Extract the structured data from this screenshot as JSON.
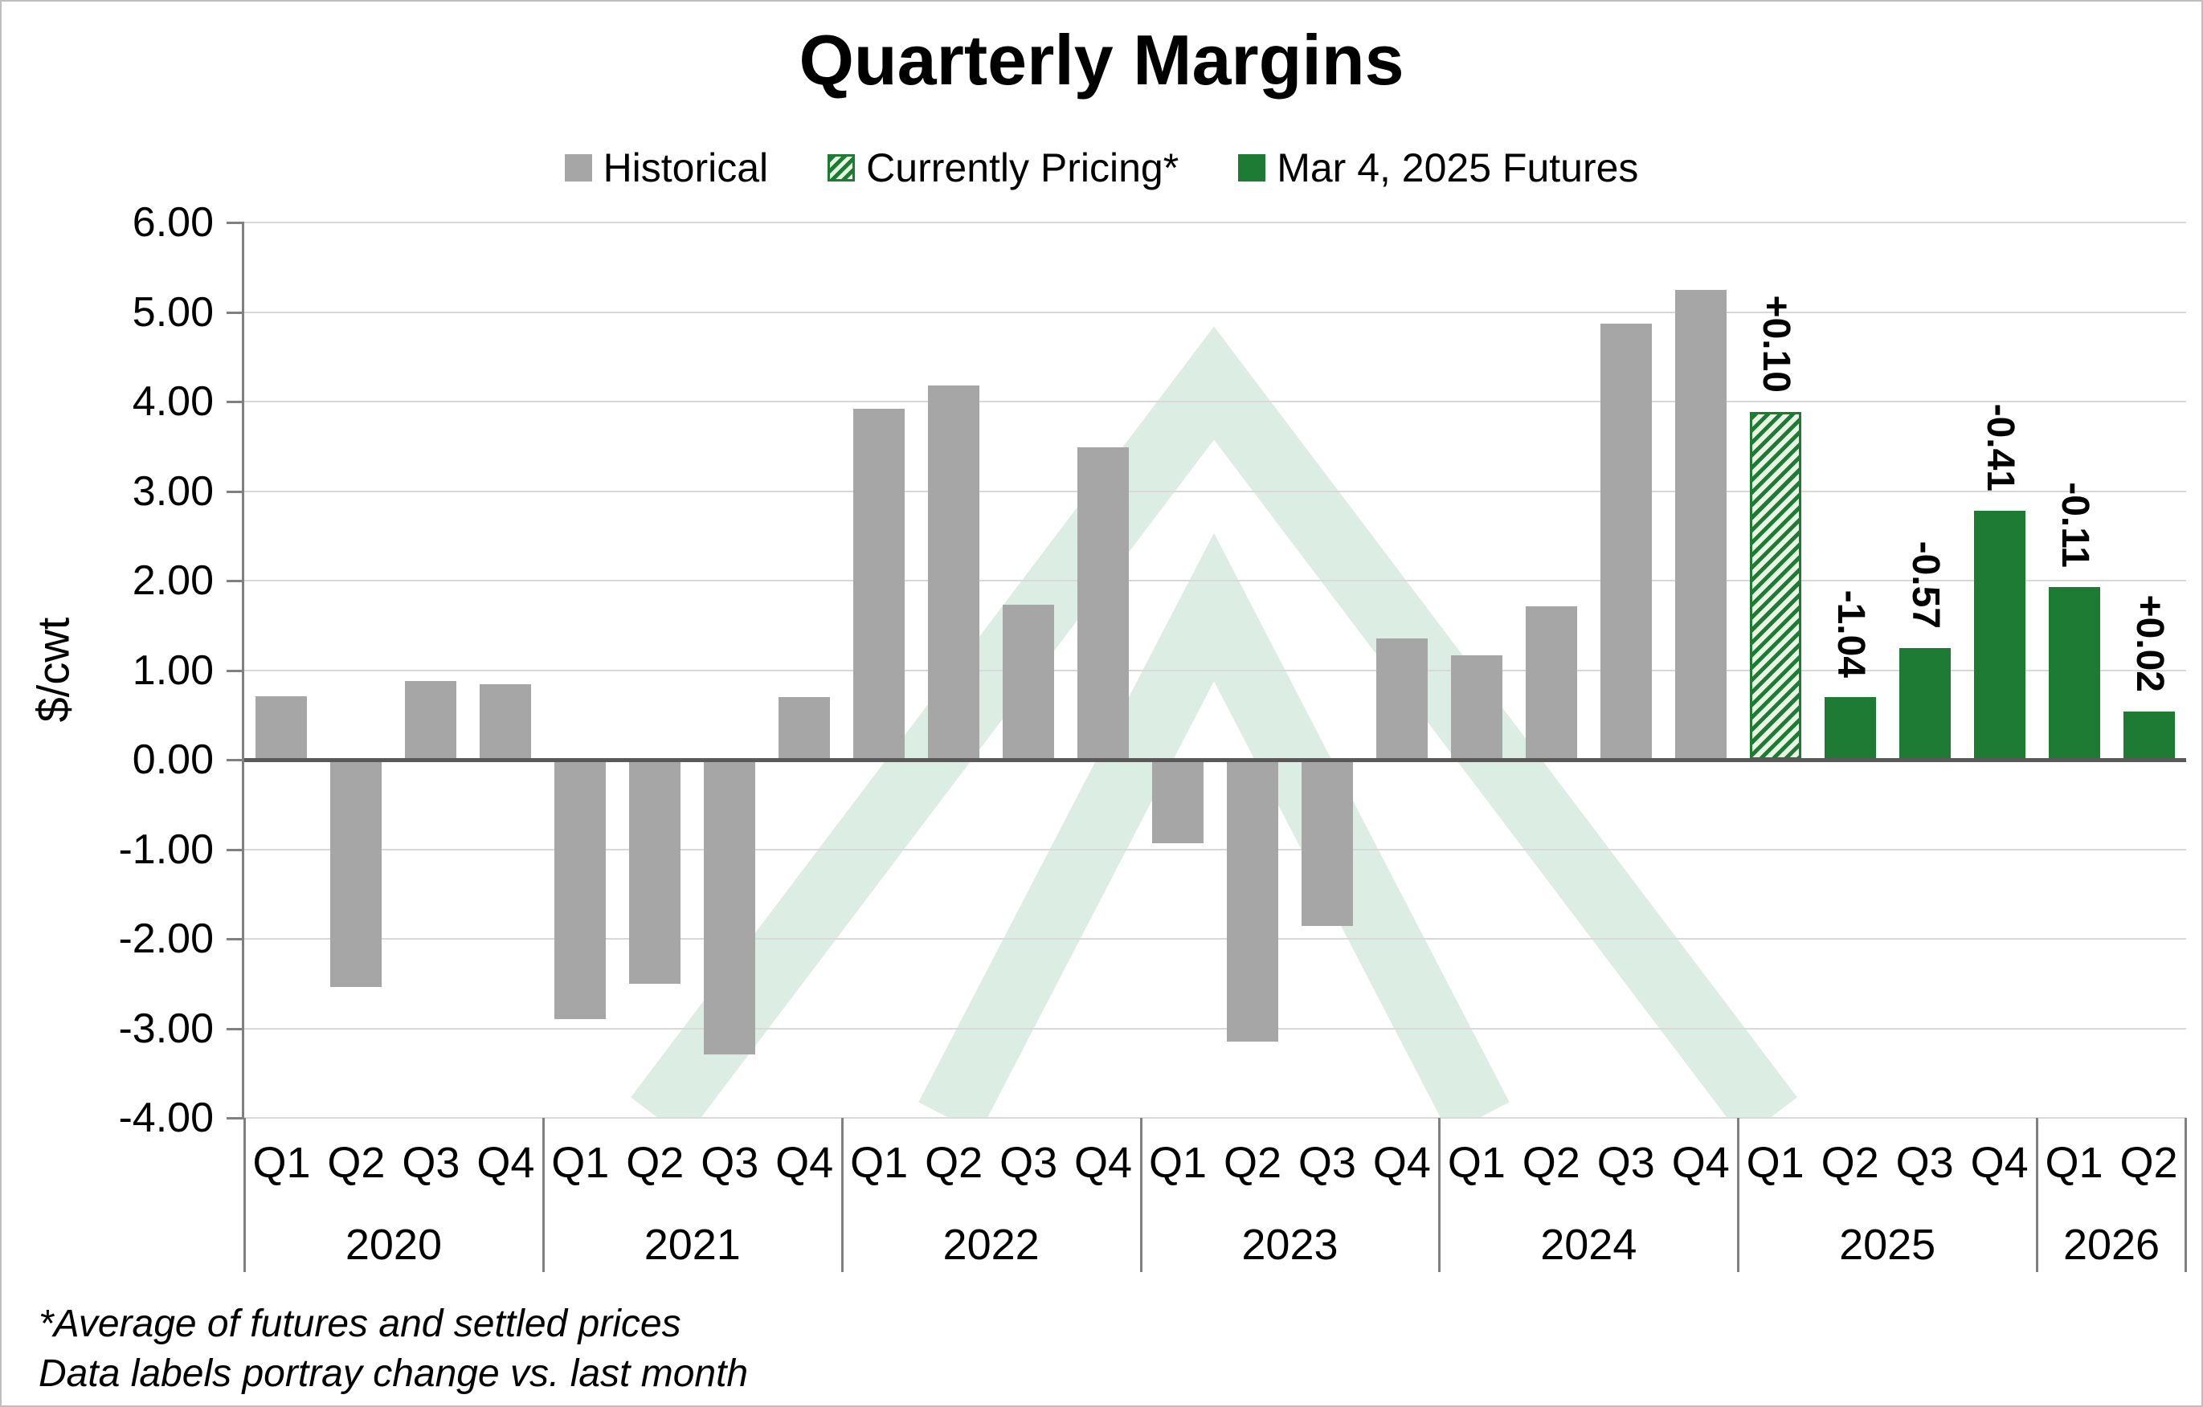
{
  "title": "Quarterly Margins",
  "legend": {
    "items": [
      {
        "key": "historical",
        "label": "Historical",
        "swatch": "solid-gray"
      },
      {
        "key": "pricing",
        "label": "Currently Pricing*",
        "swatch": "hatched-green"
      },
      {
        "key": "futures",
        "label": "Mar 4, 2025 Futures",
        "swatch": "solid-green"
      }
    ]
  },
  "y_axis": {
    "title": "$/cwt",
    "max": 6,
    "min": -4,
    "step": 1,
    "tick_labels": [
      "6.00",
      "5.00",
      "4.00",
      "3.00",
      "2.00",
      "1.00",
      "0.00",
      "-1.00",
      "-2.00",
      "-3.00",
      "-4.00"
    ]
  },
  "footnotes": [
    "*Average of futures and settled prices",
    "Data labels portray change vs. last month"
  ],
  "colors": {
    "historical": "#a6a6a6",
    "futures_green": "#1e7b33",
    "hatch_background": "#e9f4e4",
    "gridline": "#d9d9d9",
    "zero_line": "#595959",
    "axis": "#808080",
    "watermark": "#dcede3",
    "chart_border": "#bfbfbf",
    "text": "#000000"
  },
  "chart_data": {
    "type": "bar",
    "title": "Quarterly Margins",
    "ylabel": "$/cwt",
    "ylim": [
      -4,
      6
    ],
    "ytick_step": 1,
    "grid": true,
    "legend_position": "top",
    "x_axis_levels": [
      "quarter",
      "year"
    ],
    "series_legend": [
      "Historical",
      "Currently Pricing*",
      "Mar 4, 2025 Futures"
    ],
    "bars": [
      {
        "year": "2020",
        "quarter": "Q1",
        "value": 0.71,
        "series": "historical"
      },
      {
        "year": "2020",
        "quarter": "Q2",
        "value": -2.54,
        "series": "historical"
      },
      {
        "year": "2020",
        "quarter": "Q3",
        "value": 0.88,
        "series": "historical"
      },
      {
        "year": "2020",
        "quarter": "Q4",
        "value": 0.84,
        "series": "historical"
      },
      {
        "year": "2021",
        "quarter": "Q1",
        "value": -2.9,
        "series": "historical"
      },
      {
        "year": "2021",
        "quarter": "Q2",
        "value": -2.5,
        "series": "historical"
      },
      {
        "year": "2021",
        "quarter": "Q3",
        "value": -3.29,
        "series": "historical"
      },
      {
        "year": "2021",
        "quarter": "Q4",
        "value": 0.7,
        "series": "historical"
      },
      {
        "year": "2022",
        "quarter": "Q1",
        "value": 3.92,
        "series": "historical"
      },
      {
        "year": "2022",
        "quarter": "Q2",
        "value": 4.18,
        "series": "historical"
      },
      {
        "year": "2022",
        "quarter": "Q3",
        "value": 1.73,
        "series": "historical"
      },
      {
        "year": "2022",
        "quarter": "Q4",
        "value": 3.49,
        "series": "historical"
      },
      {
        "year": "2023",
        "quarter": "Q1",
        "value": -0.93,
        "series": "historical"
      },
      {
        "year": "2023",
        "quarter": "Q2",
        "value": -3.15,
        "series": "historical"
      },
      {
        "year": "2023",
        "quarter": "Q3",
        "value": -1.86,
        "series": "historical"
      },
      {
        "year": "2023",
        "quarter": "Q4",
        "value": 1.35,
        "series": "historical"
      },
      {
        "year": "2024",
        "quarter": "Q1",
        "value": 1.17,
        "series": "historical"
      },
      {
        "year": "2024",
        "quarter": "Q2",
        "value": 1.71,
        "series": "historical"
      },
      {
        "year": "2024",
        "quarter": "Q3",
        "value": 4.87,
        "series": "historical"
      },
      {
        "year": "2024",
        "quarter": "Q4",
        "value": 5.25,
        "series": "historical"
      },
      {
        "year": "2025",
        "quarter": "Q1",
        "value": 3.88,
        "series": "pricing",
        "label": "+0.10"
      },
      {
        "year": "2025",
        "quarter": "Q2",
        "value": 0.7,
        "series": "futures",
        "label": "-1.04"
      },
      {
        "year": "2025",
        "quarter": "Q3",
        "value": 1.25,
        "series": "futures",
        "label": "-0.57"
      },
      {
        "year": "2025",
        "quarter": "Q4",
        "value": 2.78,
        "series": "futures",
        "label": "-0.41"
      },
      {
        "year": "2026",
        "quarter": "Q1",
        "value": 1.93,
        "series": "futures",
        "label": "-0.11"
      },
      {
        "year": "2026",
        "quarter": "Q2",
        "value": 0.54,
        "series": "futures",
        "label": "+0.02"
      }
    ]
  }
}
